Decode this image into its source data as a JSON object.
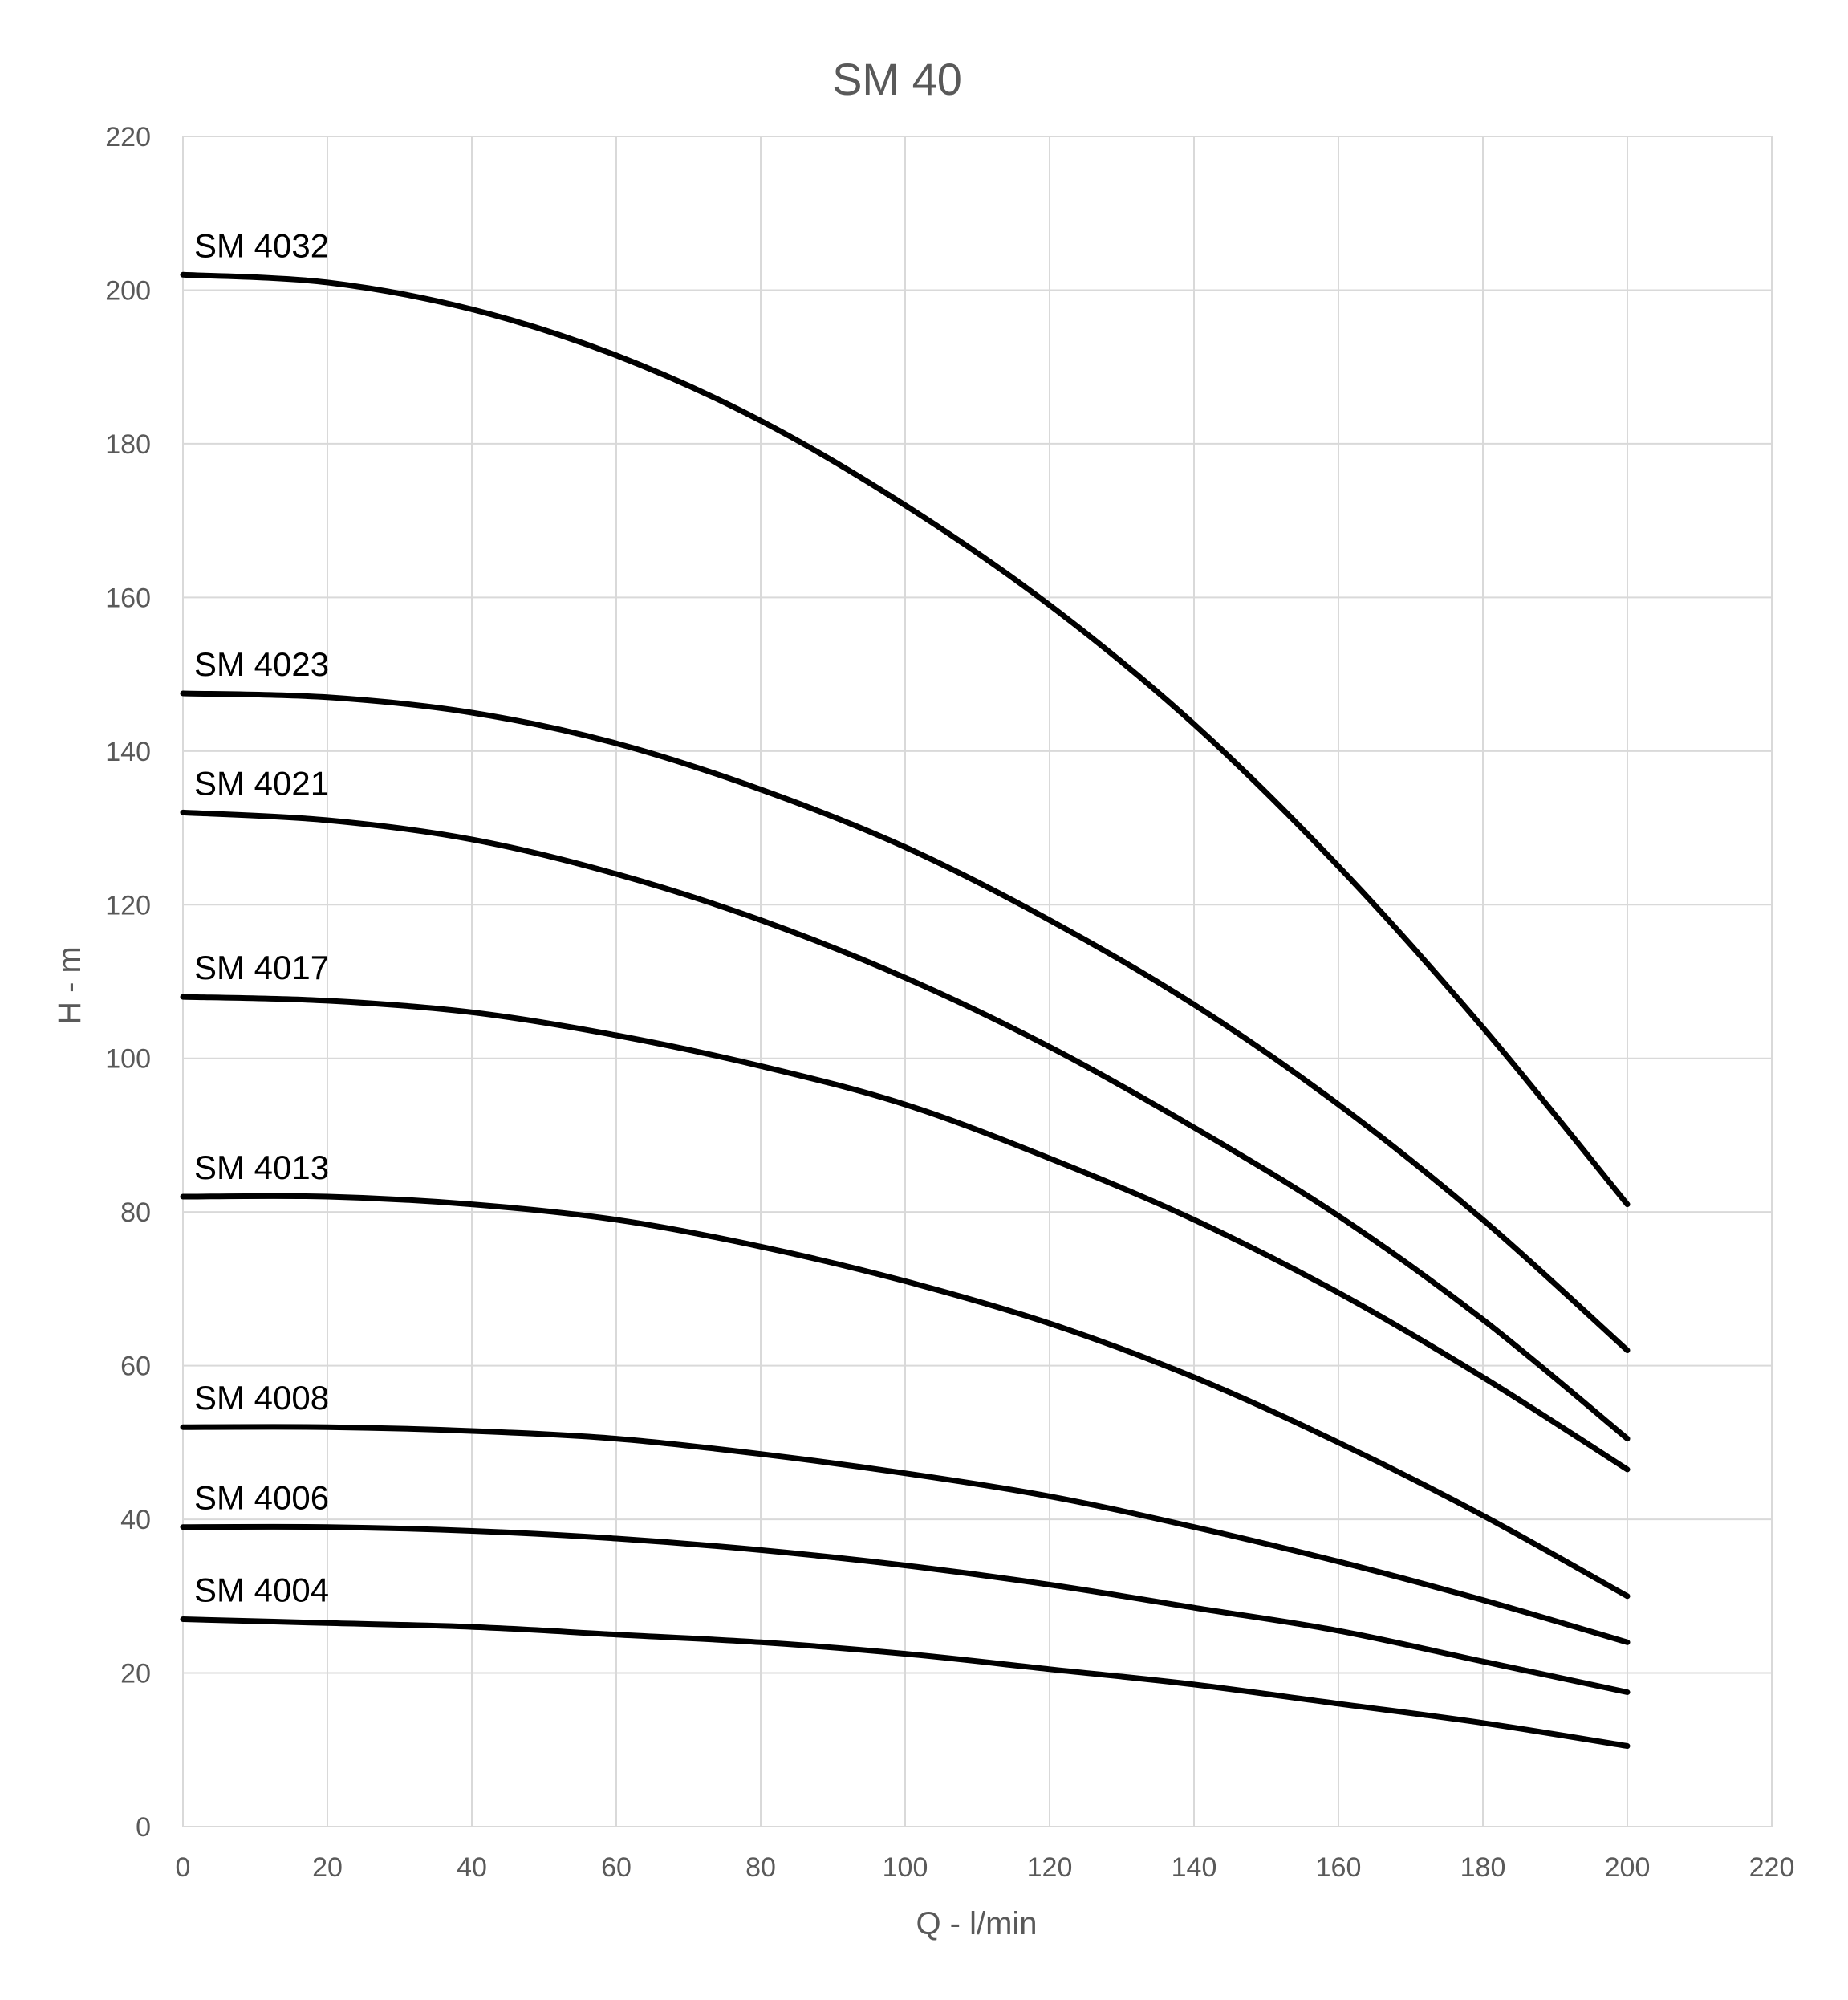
{
  "chart_data": {
    "type": "line",
    "title": "SM 40",
    "xlabel": "Q - l/min",
    "ylabel": "H - m",
    "xlim": [
      0,
      220
    ],
    "ylim": [
      0,
      220
    ],
    "xticks": [
      0,
      20,
      40,
      60,
      80,
      100,
      120,
      140,
      160,
      180,
      200,
      220
    ],
    "yticks": [
      0,
      20,
      40,
      60,
      80,
      100,
      120,
      140,
      160,
      180,
      200,
      220
    ],
    "grid": true,
    "series": [
      {
        "name": "SM 4032",
        "x": [
          0,
          20,
          40,
          60,
          80,
          100,
          120,
          140,
          160,
          180,
          200
        ],
        "y": [
          202,
          201,
          197.5,
          191.5,
          183,
          172,
          159,
          143.5,
          125,
          104,
          81
        ]
      },
      {
        "name": "SM 4023",
        "x": [
          0,
          20,
          40,
          60,
          80,
          100,
          120,
          140,
          160,
          180,
          200
        ],
        "y": [
          147.5,
          147,
          145,
          141,
          135,
          127.5,
          118,
          107,
          94,
          79,
          62
        ]
      },
      {
        "name": "SM 4021",
        "x": [
          0,
          20,
          40,
          60,
          80,
          100,
          120,
          140,
          160,
          180,
          200
        ],
        "y": [
          132,
          131,
          128.5,
          124,
          118,
          110.5,
          101.5,
          91,
          79.5,
          66,
          50.5
        ]
      },
      {
        "name": "SM 4017",
        "x": [
          0,
          20,
          40,
          60,
          80,
          100,
          120,
          140,
          160,
          180,
          200
        ],
        "y": [
          108,
          107.5,
          106,
          103,
          99,
          94,
          87,
          79,
          69.5,
          58.5,
          46.5
        ]
      },
      {
        "name": "SM 4013",
        "x": [
          0,
          20,
          40,
          60,
          80,
          100,
          120,
          140,
          160,
          180,
          200
        ],
        "y": [
          82,
          82,
          81,
          79,
          75.5,
          71,
          65.5,
          58.5,
          50,
          40.5,
          30
        ]
      },
      {
        "name": "SM 4008",
        "x": [
          0,
          20,
          40,
          60,
          80,
          100,
          120,
          140,
          160,
          180,
          200
        ],
        "y": [
          52,
          52,
          51.5,
          50.5,
          48.5,
          46,
          43,
          39,
          34.5,
          29.5,
          24
        ]
      },
      {
        "name": "SM 4006",
        "x": [
          0,
          20,
          40,
          60,
          80,
          100,
          120,
          140,
          160,
          180,
          200
        ],
        "y": [
          39,
          39,
          38.5,
          37.5,
          36,
          34,
          31.5,
          28.5,
          25.5,
          21.5,
          17.5
        ]
      },
      {
        "name": "SM 4004",
        "x": [
          0,
          20,
          40,
          60,
          80,
          100,
          120,
          140,
          160,
          180,
          200
        ],
        "y": [
          27,
          26.5,
          26,
          25,
          24,
          22.5,
          20.5,
          18.5,
          16,
          13.5,
          10.5
        ]
      }
    ]
  }
}
